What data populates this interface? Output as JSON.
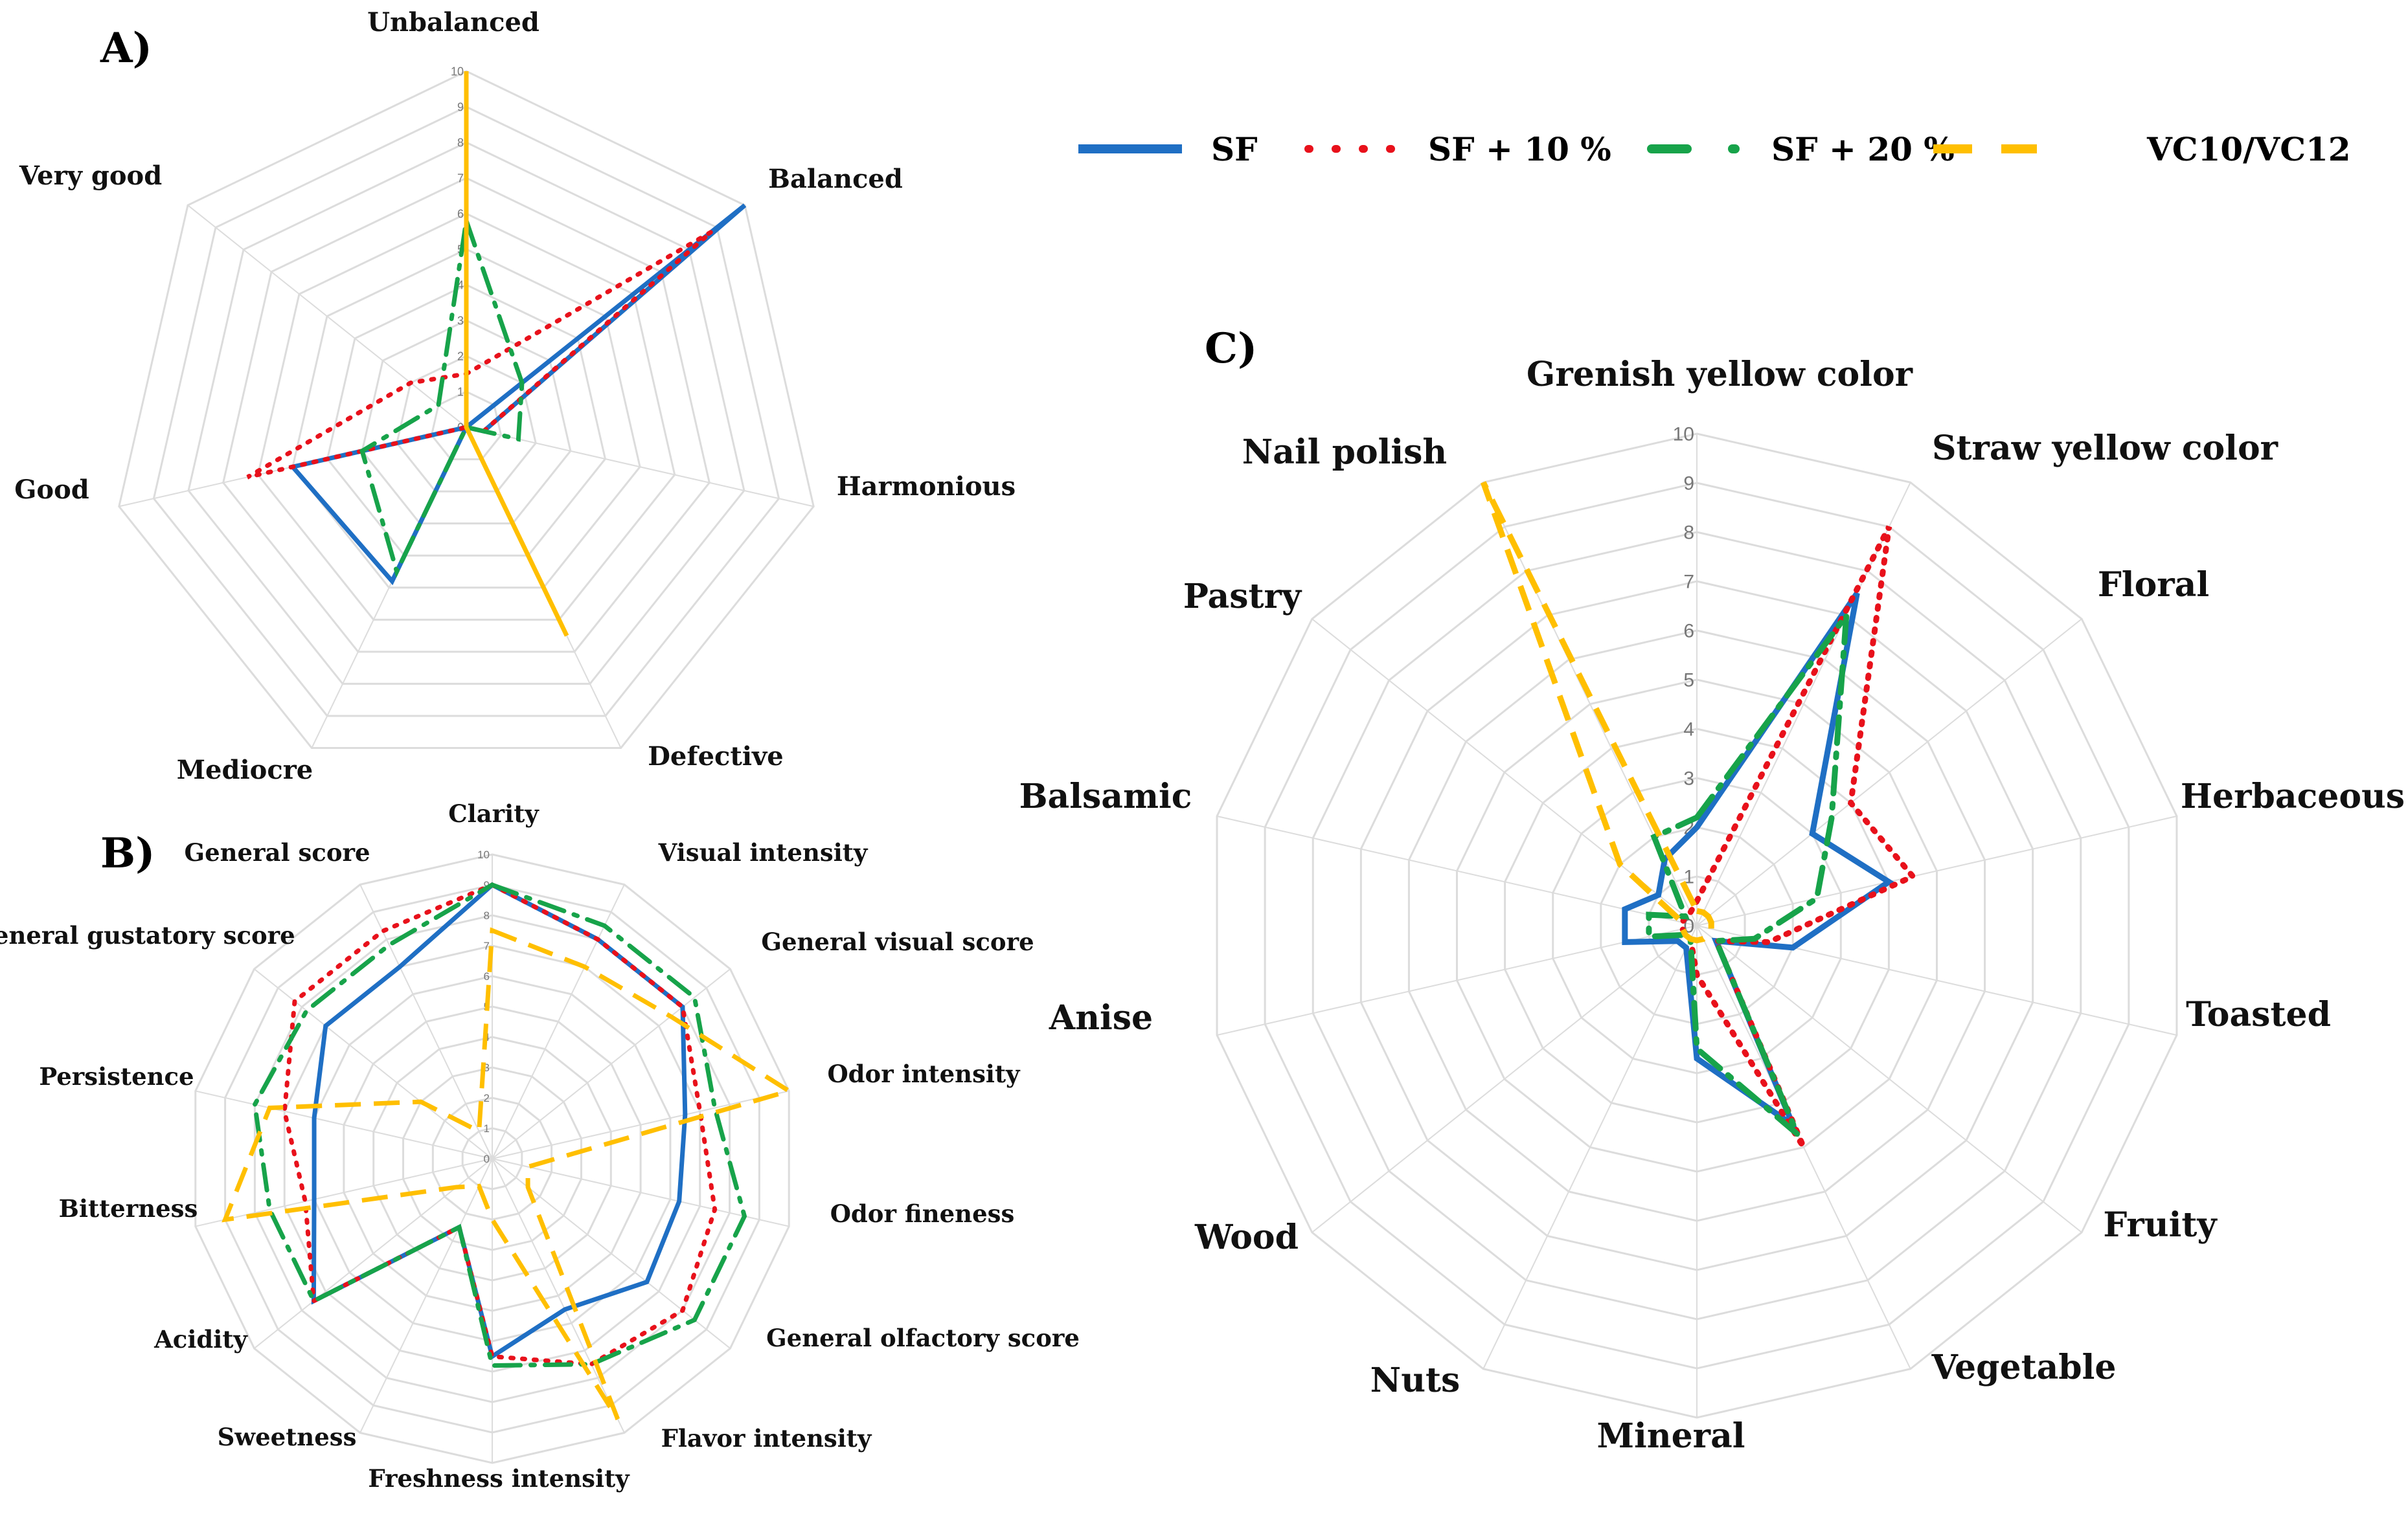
{
  "colors": {
    "SF": "#1f6fc4",
    "SF10": "#e8111b",
    "SF20": "#17a34a",
    "VC": "#ffbf00",
    "grid": "#dcdcdc"
  },
  "legend": [
    {
      "key": "SF",
      "label": "SF"
    },
    {
      "key": "SF10",
      "label": "SF + 10 %"
    },
    {
      "key": "SF20",
      "label": "SF + 20 %"
    },
    {
      "key": "VC",
      "label": "VC10/VC12"
    }
  ],
  "chart_data": [
    {
      "panel": "A)",
      "type": "radar",
      "max": 10,
      "ticks": [
        "0",
        "1",
        "2",
        "3",
        "4",
        "5",
        "6",
        "7",
        "8",
        "9",
        "10"
      ],
      "axes": [
        "Unbalanced",
        "Balanced",
        "Harmonious",
        "Defective",
        "Mediocre",
        "Good",
        "Very good"
      ],
      "series": [
        {
          "key": "SF",
          "values": [
            0,
            10,
            0.5,
            0,
            4.8,
            5,
            0
          ]
        },
        {
          "key": "SF10",
          "values": [
            1.5,
            8.8,
            0.5,
            0,
            0,
            6.3,
            2
          ]
        },
        {
          "key": "SF20",
          "values": [
            5.8,
            2,
            1.5,
            0,
            4.5,
            3,
            1
          ]
        },
        {
          "key": "VC",
          "values": [
            10,
            0,
            0,
            6.5,
            0,
            0,
            0
          ]
        }
      ]
    },
    {
      "panel": "B)",
      "type": "radar",
      "max": 10,
      "ticks": [
        "0",
        "1",
        "2",
        "3",
        "4",
        "5",
        "6",
        "7",
        "8",
        "9",
        "10"
      ],
      "axes": [
        "Clarity",
        "Visual intensity",
        "General visual score",
        "Odor intensity",
        "Odor fineness",
        "General olfactory score",
        "Flavor intensity",
        "Freshness intensity",
        "Sweetness",
        "Acidity",
        "Bitterness",
        "Persistence",
        "General gustatory score",
        "General score"
      ],
      "series": [
        {
          "key": "SF",
          "values": [
            9,
            8,
            8,
            6.5,
            6.3,
            6.5,
            5.5,
            6.5,
            2.5,
            7.5,
            6,
            6,
            7,
            7
          ]
        },
        {
          "key": "SF10",
          "values": [
            9,
            8,
            8,
            7,
            7.5,
            8,
            7.5,
            6.5,
            2.5,
            7.5,
            6.3,
            7,
            8.3,
            8.3
          ]
        },
        {
          "key": "SF20",
          "values": [
            9,
            8.5,
            8.5,
            7.5,
            8.5,
            8.5,
            7.5,
            6.8,
            2.5,
            7.5,
            7.5,
            8,
            7.8,
            7.8
          ]
        },
        {
          "key": "VC",
          "values": [
            7.5,
            7,
            7.5,
            10,
            1.2,
            1.5,
            9.5,
            2,
            1,
            1.5,
            9,
            7.5,
            3,
            1
          ]
        }
      ]
    },
    {
      "panel": "C)",
      "type": "radar",
      "max": 10,
      "ticks": [
        "0",
        "1",
        "2",
        "3",
        "4",
        "5",
        "6",
        "7",
        "8",
        "9",
        "10"
      ],
      "axes": [
        "Grenish yellow color",
        "Straw yellow color",
        "Floral",
        "Herbaceous",
        "Toasted",
        "Fruity",
        "Vegetable",
        "Mineral",
        "Nuts",
        "Wood",
        "Anise",
        "Balsamic",
        "Pastry",
        "Nail polish"
      ],
      "series": [
        {
          "key": "SF",
          "values": [
            2,
            7.5,
            3,
            4,
            2,
            0.5,
            4.5,
            2.7,
            0.5,
            0.5,
            1.5,
            1.5,
            1,
            1.5
          ]
        },
        {
          "key": "SF10",
          "values": [
            0.5,
            9,
            4,
            4.5,
            1.5,
            0.5,
            5,
            1,
            0.3,
            0.3,
            0.3,
            0.3,
            0.3,
            0.3
          ]
        },
        {
          "key": "SF20",
          "values": [
            2.2,
            7,
            3.5,
            2.5,
            1.2,
            0.5,
            4.7,
            2.5,
            0.3,
            0.3,
            1,
            1,
            0.3,
            2
          ]
        },
        {
          "key": "VC",
          "values": [
            0.3,
            0.3,
            0.3,
            0.3,
            0.3,
            0.3,
            0.3,
            0.3,
            0.3,
            0.3,
            0.3,
            0.3,
            2,
            10
          ]
        }
      ]
    }
  ]
}
